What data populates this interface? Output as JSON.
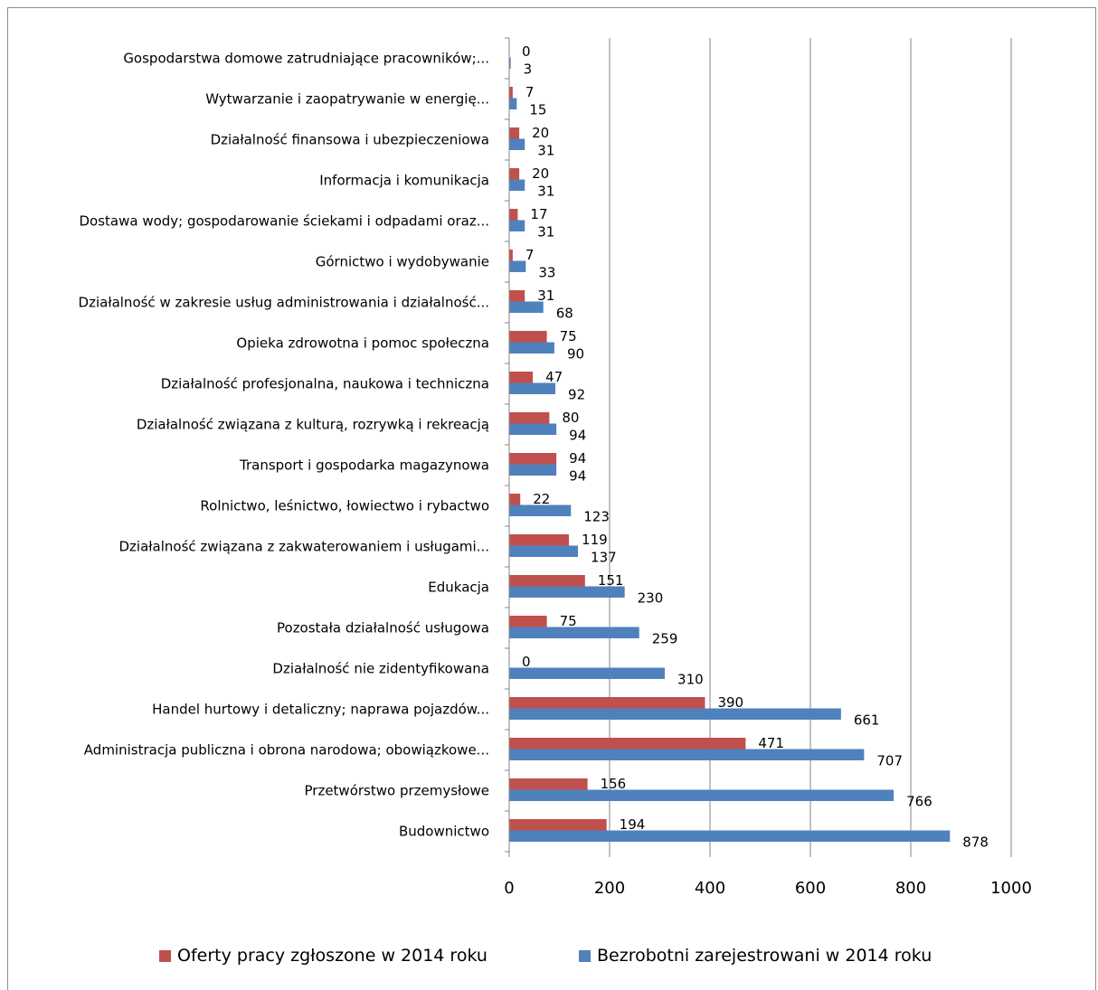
{
  "chart_data": {
    "type": "bar",
    "orientation": "horizontal",
    "categories": [
      "Budownictwo",
      "Przetwórstwo przemysłowe",
      "Administracja publiczna i obrona narodowa; obowiązkowe...",
      "Handel hurtowy i detaliczny; naprawa pojazdów...",
      "Działalność nie zidentyfikowana",
      "Pozostała działalność usługowa",
      "Edukacja",
      "Działalność związana z zakwaterowaniem i usługami...",
      "Rolnictwo, leśnictwo, łowiectwo i rybactwo",
      "Transport i gospodarka magazynowa",
      "Działalność  związana z kulturą, rozrywką i rekreacją",
      "Działalność profesjonalna, naukowa i techniczna",
      "Opieka zdrowotna i pomoc społeczna",
      "Działalność w zakresie usług administrowania i działalność...",
      "Górnictwo i wydobywanie",
      "Dostawa wody; gospodarowanie ściekami i odpadami oraz...",
      "Informacja i komunikacja",
      "Działalność  finansowa i ubezpieczeniowa",
      "Wytwarzanie i zaopatrywanie w energię...",
      "Gospodarstwa domowe zatrudniające pracowników;..."
    ],
    "series": [
      {
        "name": "Oferty pracy zgłoszone w 2014 roku",
        "color": "#c0504d",
        "values": [
          194,
          156,
          471,
          390,
          0,
          75,
          151,
          119,
          22,
          94,
          80,
          47,
          75,
          31,
          7,
          17,
          20,
          20,
          7,
          0
        ]
      },
      {
        "name": "Bezrobotni zarejestrowani w 2014 roku",
        "color": "#4f81bd",
        "values": [
          878,
          766,
          707,
          661,
          310,
          259,
          230,
          137,
          123,
          94,
          94,
          92,
          90,
          68,
          33,
          31,
          31,
          31,
          15,
          3
        ]
      }
    ],
    "xlim": [
      0,
      1000
    ],
    "xticks": [
      "0",
      "200",
      "400",
      "600",
      "800",
      "1000"
    ],
    "grid": true,
    "legend_position": "bottom"
  }
}
